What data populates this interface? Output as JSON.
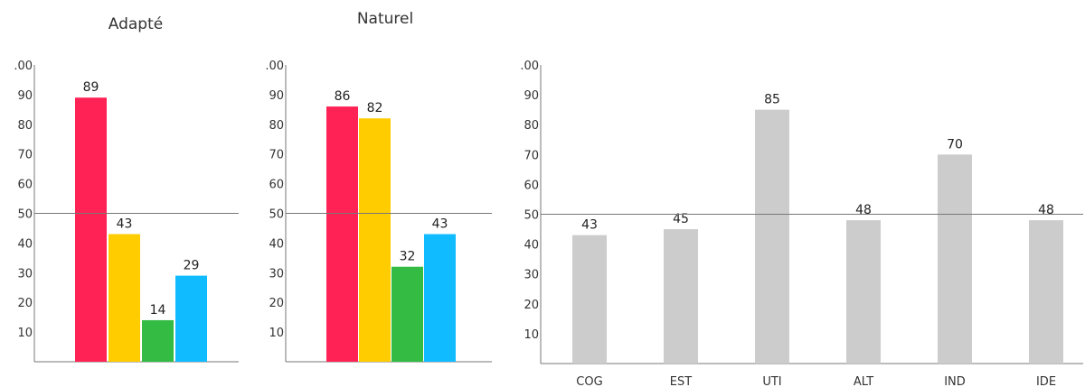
{
  "chart_data": [
    {
      "type": "bar",
      "title": "Adapté",
      "values": [
        89,
        43,
        14,
        29
      ],
      "colors": [
        "#ff2255",
        "#ffcc00",
        "#33bb44",
        "#11bbff"
      ],
      "ylim": [
        0,
        100
      ],
      "yticks": [
        ".00",
        "90",
        "80",
        "70",
        "60",
        "50",
        "40",
        "30",
        "20",
        "10"
      ],
      "reference_line": 50
    },
    {
      "type": "bar",
      "title": "Naturel",
      "values": [
        86,
        82,
        32,
        43
      ],
      "colors": [
        "#ff2255",
        "#ffcc00",
        "#33bb44",
        "#11bbff"
      ],
      "ylim": [
        0,
        100
      ],
      "yticks": [
        ".00",
        "90",
        "80",
        "70",
        "60",
        "50",
        "40",
        "30",
        "20",
        "10"
      ],
      "reference_line": 50
    },
    {
      "type": "bar",
      "title": "",
      "categories": [
        "COG",
        "EST",
        "UTI",
        "ALT",
        "IND",
        "IDE"
      ],
      "values": [
        43,
        45,
        85,
        48,
        70,
        48
      ],
      "color": "#cccccc",
      "ylim": [
        0,
        100
      ],
      "yticks": [
        ".00",
        "90",
        "80",
        "70",
        "60",
        "50",
        "40",
        "30",
        "20",
        "10"
      ],
      "reference_line": 50
    }
  ]
}
